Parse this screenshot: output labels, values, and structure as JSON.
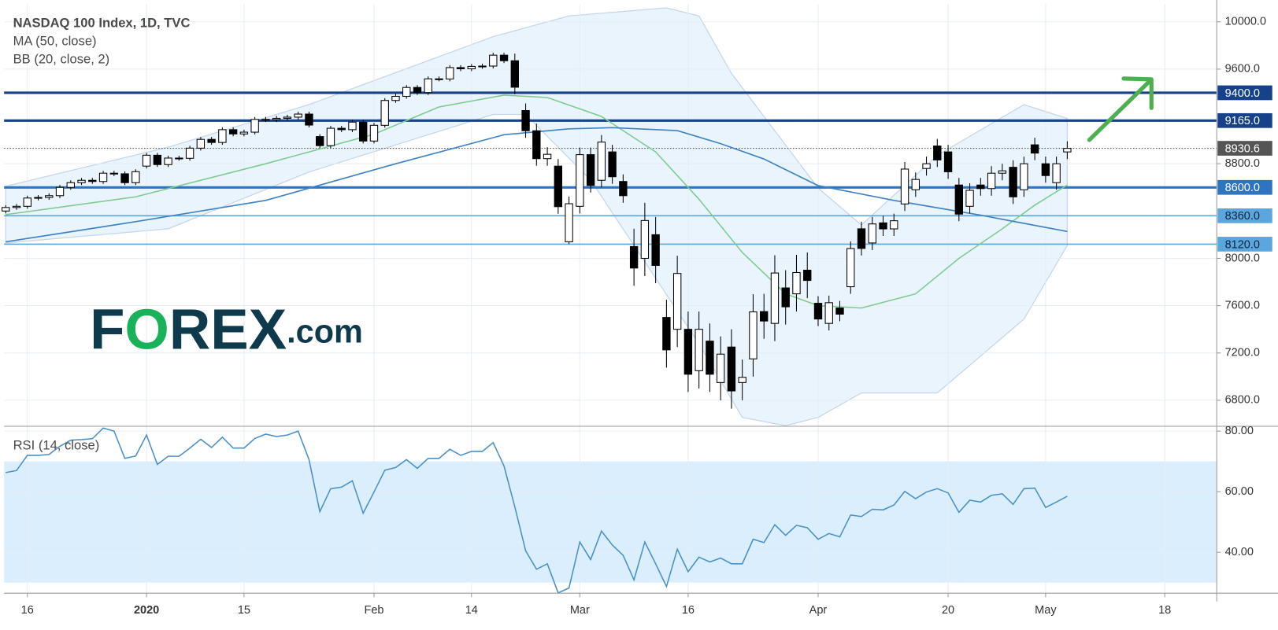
{
  "chart_data": {
    "type": "candlestick",
    "title": "NASDAQ 100 Index, 1D, TVC",
    "indicators_text": [
      "MA (50, close)",
      "BB (20, close, 2)"
    ],
    "logo": [
      "F",
      "O",
      "REX",
      ".com"
    ],
    "up_color": "#ffffff",
    "down_color": "#000000",
    "open": [
      8400,
      8430,
      8440,
      8510,
      8515,
      8530,
      8600,
      8640,
      8660,
      8650,
      8720,
      8715,
      8640,
      8780,
      8872,
      8793,
      8848,
      8846,
      8932,
      9006,
      8980,
      9088,
      9052,
      9067,
      9175,
      9173,
      9184,
      9194,
      9220,
      9030,
      8953,
      9100,
      9088,
      9152,
      8992,
      9125,
      9335,
      9370,
      9445,
      9402,
      9518,
      9517,
      9613,
      9603,
      9623,
      9626,
      9718,
      9671,
      9250,
      9079,
      8843,
      8780,
      8140,
      8440,
      8877,
      8660,
      8900,
      8650,
      8100,
      8000,
      8200,
      7500,
      7400,
      7400,
      7050,
      7300,
      6950,
      7250,
      6950,
      7150,
      7550,
      7450,
      7750,
      7700,
      7900,
      7620,
      7450,
      7580,
      7760,
      8250,
      8130,
      8300,
      8249,
      8460,
      8580,
      8760,
      8950,
      8900,
      8620,
      8440,
      8620,
      8590,
      8720,
      8770,
      8580,
      8960,
      8800,
      8640,
      8900
    ],
    "high": [
      8450,
      8460,
      8530,
      8535,
      8550,
      8620,
      8660,
      8680,
      8680,
      8740,
      8740,
      8735,
      8753,
      8892,
      8892,
      8868,
      8868,
      8952,
      9026,
      9026,
      9108,
      9108,
      9087,
      9195,
      9195,
      9204,
      9214,
      9240,
      9240,
      9050,
      9120,
      9120,
      9172,
      9172,
      9145,
      9355,
      9390,
      9465,
      9465,
      9538,
      9538,
      9633,
      9633,
      9643,
      9646,
      9738,
      9738,
      9731,
      9310,
      9139,
      8940,
      8840,
      8522,
      8937,
      8937,
      9043,
      8960,
      8710,
      8250,
      8470,
      8350,
      7650,
      8022,
      7550,
      7550,
      7450,
      7340,
      7400,
      7144,
      7697,
      7700,
      8026,
      7900,
      8030,
      8050,
      7680,
      7685,
      7640,
      8143,
      8310,
      8351,
      8360,
      8378,
      8815,
      8727,
      8860,
      9010,
      8960,
      8680,
      8635,
      8680,
      8780,
      8800,
      8830,
      8860,
      9020,
      8860,
      8860,
      8990
    ],
    "low": [
      8380,
      8410,
      8420,
      8490,
      8495,
      8510,
      8580,
      8620,
      8630,
      8630,
      8695,
      8620,
      8620,
      8760,
      8773,
      8773,
      8826,
      8826,
      8912,
      8960,
      8960,
      9032,
      9032,
      9047,
      9153,
      9153,
      9164,
      9174,
      9107,
      8933,
      8933,
      9068,
      9068,
      8972,
      8972,
      9105,
      9315,
      9350,
      9382,
      9382,
      9497,
      9497,
      9583,
      9583,
      9603,
      9606,
      9651,
      9387,
      9019,
      8783,
      8783,
      8377,
      8120,
      8380,
      8556,
      8600,
      8630,
      8470,
      7768,
      7850,
      7790,
      7076,
      7250,
      6870,
      6900,
      6870,
      6800,
      6729,
      6800,
      7000,
      7320,
      7300,
      7440,
      7550,
      7663,
      7427,
      7390,
      7468,
      7700,
      8024,
      8070,
      8189,
      8189,
      8400,
      8520,
      8700,
      8772,
      8672,
      8314,
      8380,
      8530,
      8530,
      8660,
      8460,
      8520,
      8830,
      8640,
      8580,
      8840
    ],
    "close": [
      8430,
      8440,
      8510,
      8515,
      8530,
      8600,
      8640,
      8660,
      8650,
      8720,
      8715,
      8640,
      8733,
      8872,
      8793,
      8848,
      8846,
      8932,
      9006,
      8980,
      9088,
      9052,
      9067,
      9175,
      9173,
      9184,
      9194,
      9220,
      9127,
      8953,
      9100,
      9088,
      9152,
      8992,
      9125,
      9335,
      9370,
      9445,
      9402,
      9518,
      9517,
      9613,
      9603,
      9623,
      9626,
      9718,
      9671,
      9447,
      9079,
      8843,
      8880,
      8437,
      8462,
      8877,
      8616,
      8983,
      8690,
      8530,
      7918,
      8320,
      7940,
      7226,
      7872,
      7020,
      7400,
      7020,
      7190,
      6879,
      6994,
      7547,
      7470,
      7876,
      7590,
      7880,
      7813,
      7487,
      7625,
      7528,
      8083,
      8084,
      8291,
      8249,
      8318,
      8755,
      8667,
      8800,
      8832,
      8732,
      8374,
      8575,
      8590,
      8720,
      8740,
      8520,
      8800,
      8890,
      8700,
      8800,
      8930
    ],
    "xlim": [
      -0.15,
      111.8
    ],
    "xticks": [
      {
        "value": 2,
        "label": "16"
      },
      {
        "value": 13,
        "label": "2020"
      },
      {
        "value": 22,
        "label": "15"
      },
      {
        "value": 34,
        "label": "Feb"
      },
      {
        "value": 43,
        "label": "14"
      },
      {
        "value": 53,
        "label": "Mar"
      },
      {
        "value": 63,
        "label": "16"
      },
      {
        "value": 75,
        "label": "Apr"
      },
      {
        "value": 87,
        "label": "20"
      },
      {
        "value": 96,
        "label": "May"
      },
      {
        "value": 107,
        "label": "18"
      }
    ],
    "ylim": [
      6580,
      10150
    ],
    "yticks": [
      {
        "value": 10000,
        "label": "10000.0"
      },
      {
        "value": 9600,
        "label": "9600.0"
      },
      {
        "value": 8800,
        "label": "8800.0"
      },
      {
        "value": 8000,
        "label": "8000.0"
      },
      {
        "value": 7600,
        "label": "7600.0"
      },
      {
        "value": 7200,
        "label": "7200.0"
      },
      {
        "value": 6800,
        "label": "6800.0"
      }
    ],
    "grid": true,
    "ma": {
      "color": "#3f82c4",
      "x": [
        0,
        12,
        24,
        36,
        46,
        52,
        56,
        62,
        66,
        70,
        75,
        82,
        90,
        98
      ],
      "values": [
        8140,
        8310,
        8490,
        8800,
        9045,
        9095,
        9105,
        9080,
        8970,
        8840,
        8615,
        8490,
        8365,
        8227
      ]
    },
    "bb": {
      "line_color": "#c3d6ea",
      "fill": "#eaf4fd",
      "basis": {
        "color": "#7ccb8f",
        "x": [
          0,
          12,
          24,
          34,
          40,
          46,
          50,
          55,
          60,
          64,
          68,
          72,
          75,
          79,
          84,
          88,
          92,
          95,
          98
        ],
        "values": [
          8370,
          8520,
          8800,
          9050,
          9280,
          9380,
          9360,
          9200,
          8900,
          8500,
          8050,
          7700,
          7600,
          7580,
          7700,
          8000,
          8250,
          8450,
          8620
        ]
      },
      "upper": {
        "x": [
          0,
          15,
          28,
          45,
          52,
          61,
          64,
          67,
          75,
          79,
          86,
          94,
          98
        ],
        "values": [
          8610,
          8940,
          9300,
          9875,
          10050,
          10118,
          10050,
          9564,
          8594,
          8282,
          8871,
          9300,
          9183
        ]
      },
      "lower": {
        "x": [
          0,
          15,
          28,
          45,
          48,
          54,
          58,
          64,
          68,
          72,
          75,
          79,
          86,
          94,
          98
        ],
        "values": [
          8130,
          8250,
          8730,
          9217,
          9217,
          8663,
          8109,
          7278,
          6655,
          6585,
          6655,
          6862,
          6862,
          7486,
          8109
        ]
      }
    },
    "levels": [
      {
        "value": 9400,
        "label": "9400.0",
        "color": "#17428a",
        "text_color": "#ffffff",
        "width": 3
      },
      {
        "value": 9165,
        "label": "9165.0",
        "color": "#17428a",
        "text_color": "#ffffff",
        "width": 3
      },
      {
        "value": 8600,
        "label": "8600.0",
        "color": "#2f74c0",
        "text_color": "#ffffff",
        "width": 3
      },
      {
        "value": 8360,
        "label": "8360.0",
        "color": "#5aa6dd",
        "text_color": "#10243d",
        "width": 1.5
      },
      {
        "value": 8120,
        "label": "8120.0",
        "color": "#5aa6dd",
        "text_color": "#10243d",
        "width": 1.5
      }
    ],
    "last": {
      "value": 8930.6,
      "color": "#555555"
    },
    "rsi": {
      "title": "RSI (14, close)",
      "color": "#4a90c8",
      "band": [
        30,
        70
      ],
      "band_color": "#dbeefd",
      "ylim": [
        26.5,
        81.6
      ],
      "yticks": [
        {
          "value": 80,
          "label": "80.00"
        },
        {
          "value": 60,
          "label": "60.00"
        },
        {
          "value": 40,
          "label": "40.00"
        }
      ],
      "values": [
        66.3,
        67,
        72,
        72,
        72.3,
        75,
        77,
        77.2,
        77.5,
        81,
        80,
        71,
        71.8,
        78.7,
        69,
        71.7,
        71.7,
        74.4,
        77.3,
        74.6,
        78,
        74.4,
        74.4,
        77.6,
        79,
        78.2,
        78.7,
        80,
        70.6,
        53.4,
        61,
        61.5,
        63.6,
        52.9,
        59.9,
        67.1,
        68,
        70.6,
        67.7,
        71,
        71,
        74,
        72,
        73.3,
        73.3,
        76.2,
        68.5,
        55,
        40.5,
        34.4,
        36.2,
        26.6,
        28.2,
        43.4,
        37.6,
        47,
        42.4,
        39,
        30.9,
        43.4,
        36.2,
        28.7,
        41,
        33.6,
        38.4,
        36.8,
        38.1,
        36.2,
        36.2,
        44.3,
        43.2,
        49.1,
        45.6,
        48.9,
        48.1,
        44.3,
        46.2,
        45.1,
        52.3,
        51.8,
        54.2,
        54,
        55.6,
        60.1,
        57.7,
        59.9,
        61,
        59.6,
        53.2,
        57.2,
        56.6,
        58.8,
        59.3,
        55.8,
        61,
        61.2,
        54.8,
        56.6,
        58.5
      ]
    }
  }
}
